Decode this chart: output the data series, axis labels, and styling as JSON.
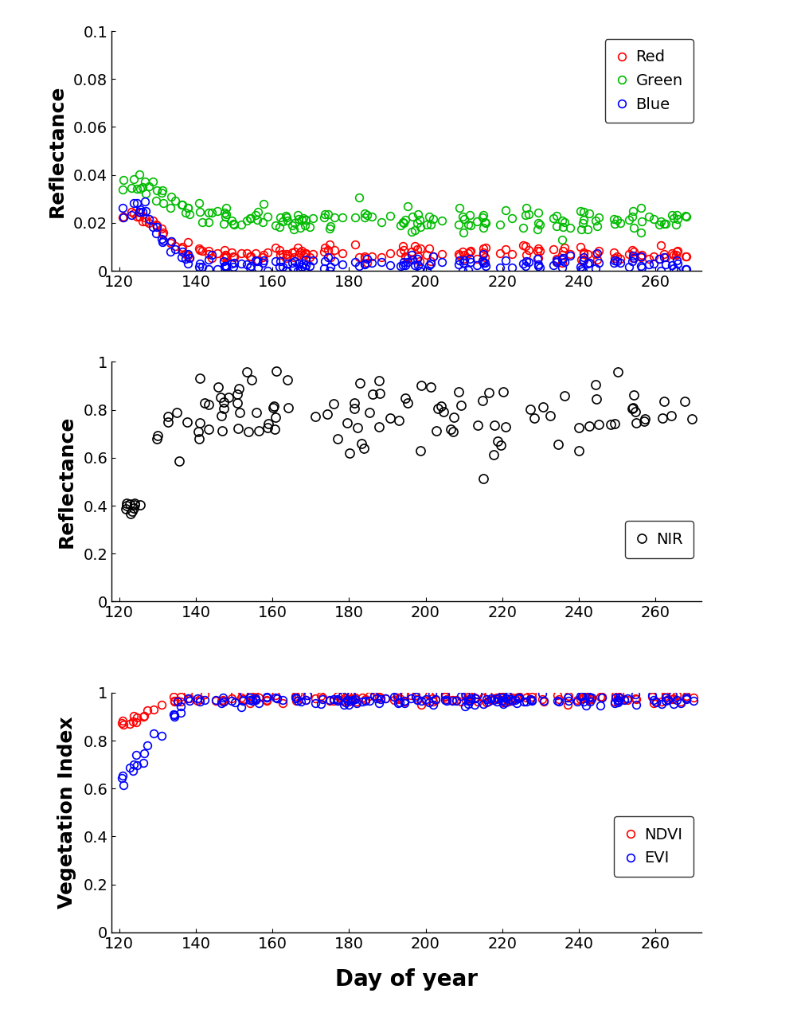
{
  "xlim": [
    118,
    272
  ],
  "xticks": [
    120,
    140,
    160,
    180,
    200,
    220,
    240,
    260
  ],
  "panel1": {
    "ylabel": "Reflectance",
    "ylim": [
      0,
      0.1
    ],
    "yticks": [
      0,
      0.02,
      0.04,
      0.06,
      0.08,
      0.1
    ],
    "ytick_labels": [
      "0",
      "0.02",
      "0.04",
      "0.06",
      "0.08",
      "0.1"
    ],
    "legend_labels": [
      "Red",
      "Green",
      "Blue"
    ],
    "legend_colors": [
      "#ff0000",
      "#00bb00",
      "#0000ff"
    ]
  },
  "panel2": {
    "ylabel": "Reflectance",
    "ylim": [
      0,
      1.0
    ],
    "yticks": [
      0,
      0.2,
      0.4,
      0.6,
      0.8,
      1.0
    ],
    "ytick_labels": [
      "0",
      "0.2",
      "0.4",
      "0.6",
      "0.8",
      "1"
    ],
    "legend_labels": [
      "NIR"
    ],
    "legend_colors": [
      "#000000"
    ]
  },
  "panel3": {
    "ylabel": "Vegetation Index",
    "ylim": [
      0,
      1.0
    ],
    "yticks": [
      0,
      0.2,
      0.4,
      0.6,
      0.8,
      1.0
    ],
    "ytick_labels": [
      "0",
      "0.2",
      "0.4",
      "0.6",
      "0.8",
      "1"
    ],
    "legend_labels": [
      "NDVI",
      "EVI"
    ],
    "legend_colors": [
      "#ff0000",
      "#0000ff"
    ]
  },
  "xlabel": "Day of year",
  "marker_size": 7,
  "marker_lw": 1.2,
  "bg_color": "#ffffff",
  "tick_fontsize": 14,
  "label_fontsize": 18,
  "legend_fontsize": 14
}
